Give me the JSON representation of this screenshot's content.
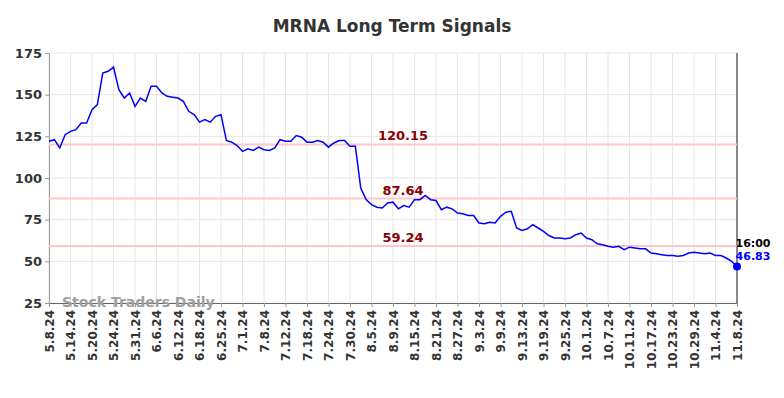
{
  "chart_data": {
    "type": "line",
    "title": "MRNA Long Term Signals",
    "watermark": "Stock Traders Daily",
    "end_time": "16:00",
    "color": "#0000ff",
    "grid": true,
    "ylim": [
      25,
      175
    ],
    "yticks": [
      25,
      50,
      75,
      100,
      125,
      150,
      175
    ],
    "hlines": [
      120.15,
      87.64,
      59.24
    ],
    "categories": [
      "5.8.24",
      null,
      null,
      null,
      "5.14.24",
      null,
      null,
      null,
      "5.20.24",
      null,
      null,
      null,
      "5.24.24",
      null,
      null,
      null,
      "5.31.24",
      null,
      null,
      null,
      "6.6.24",
      null,
      null,
      null,
      "6.12.24",
      null,
      null,
      null,
      "6.18.24",
      null,
      null,
      null,
      "6.25.24",
      null,
      null,
      null,
      "7.1.24",
      null,
      null,
      null,
      "7.8.24",
      null,
      null,
      null,
      "7.12.24",
      null,
      null,
      null,
      "7.18.24",
      null,
      null,
      null,
      "7.24.24",
      null,
      null,
      null,
      "7.30.24",
      null,
      null,
      null,
      "8.5.24",
      null,
      null,
      null,
      "8.9.24",
      null,
      null,
      null,
      "8.15.24",
      null,
      null,
      null,
      "8.21.24",
      null,
      null,
      null,
      "8.27.24",
      null,
      null,
      null,
      "9.3.24",
      null,
      null,
      null,
      "9.9.24",
      null,
      null,
      null,
      "9.13.24",
      null,
      null,
      null,
      "9.19.24",
      null,
      null,
      null,
      "9.25.24",
      null,
      null,
      null,
      "10.1.24",
      null,
      null,
      null,
      "10.7.24",
      null,
      null,
      null,
      "10.11.24",
      null,
      null,
      null,
      "10.17.24",
      null,
      null,
      null,
      "10.23.24",
      null,
      null,
      null,
      "10.29.24",
      null,
      null,
      null,
      "11.4.24",
      null,
      null,
      null,
      "11.8.24"
    ],
    "values": [
      122,
      123,
      118,
      126,
      128,
      129,
      133,
      133,
      141,
      144,
      163,
      164,
      166.5,
      153,
      148,
      151,
      143,
      148,
      146,
      155,
      155,
      151,
      149,
      148.5,
      148,
      146,
      140,
      138,
      133.5,
      135,
      133.5,
      137,
      138,
      122.5,
      121.5,
      119.5,
      116,
      117.5,
      116.5,
      118.5,
      117,
      116.5,
      118,
      123,
      122,
      122,
      125.5,
      124.5,
      121.5,
      121.5,
      122.5,
      121.5,
      118.5,
      121,
      122.5,
      122.5,
      119,
      119,
      94,
      87,
      84,
      82.5,
      82,
      85,
      85.5,
      81.5,
      83.5,
      82.5,
      87,
      87,
      89.5,
      87,
      86.5,
      81,
      82.5,
      81.5,
      79,
      78.5,
      77.5,
      77.5,
      73,
      72.5,
      73.5,
      73,
      77,
      79.5,
      80,
      70,
      68.5,
      69.5,
      72,
      70,
      68,
      65.5,
      64,
      64,
      63.5,
      64,
      66,
      67,
      64,
      63,
      60.5,
      60,
      59,
      58.5,
      59,
      57,
      58.5,
      58,
      57.5,
      57.5,
      55,
      54.5,
      54,
      53.5,
      53.5,
      53,
      53.5,
      55,
      55.5,
      55,
      54.5,
      55,
      53.5,
      53.5,
      52,
      50,
      46.83
    ]
  }
}
